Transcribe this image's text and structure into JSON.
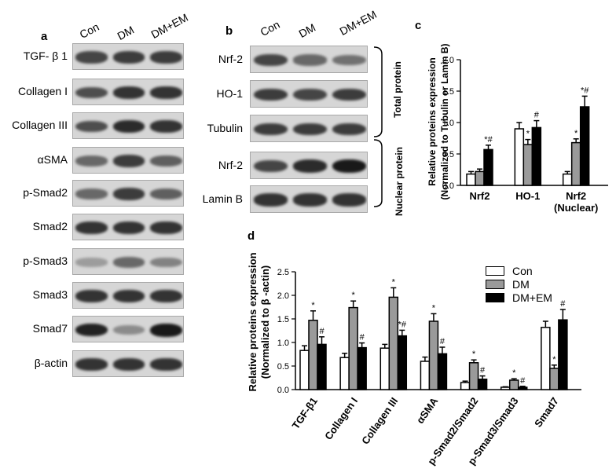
{
  "panels": {
    "a": "a",
    "b": "b",
    "c": "c",
    "d": "d"
  },
  "lanes": [
    "Con",
    "DM",
    "DM+EM"
  ],
  "panel_a": {
    "rows": [
      {
        "label": "TGF- β 1",
        "bands": [
          0.75,
          0.8,
          0.8
        ]
      },
      {
        "label": "Collagen I",
        "bands": [
          0.7,
          0.85,
          0.85
        ]
      },
      {
        "label": "Collagen III",
        "bands": [
          0.7,
          0.9,
          0.85
        ]
      },
      {
        "label": "αSMA",
        "bands": [
          0.55,
          0.8,
          0.6
        ]
      },
      {
        "label": "p-Smad2",
        "bands": [
          0.55,
          0.8,
          0.6
        ]
      },
      {
        "label": "Smad2",
        "bands": [
          0.85,
          0.85,
          0.85
        ]
      },
      {
        "label": "p-Smad3",
        "bands": [
          0.25,
          0.55,
          0.4
        ]
      },
      {
        "label": "Smad3",
        "bands": [
          0.85,
          0.85,
          0.85
        ]
      },
      {
        "label": "Smad7",
        "bands": [
          0.95,
          0.35,
          1.0
        ]
      },
      {
        "label": "β-actin",
        "bands": [
          0.85,
          0.85,
          0.85
        ]
      }
    ]
  },
  "panel_b": {
    "rows": [
      {
        "label": "Nrf-2",
        "bands": [
          0.75,
          0.55,
          0.5
        ]
      },
      {
        "label": "HO-1",
        "bands": [
          0.8,
          0.75,
          0.8
        ]
      },
      {
        "label": "Tubulin",
        "bands": [
          0.8,
          0.8,
          0.8
        ]
      },
      {
        "label": "Nrf-2",
        "bands": [
          0.75,
          0.9,
          1.0
        ]
      },
      {
        "label": "Lamin B",
        "bands": [
          0.85,
          0.85,
          0.85
        ]
      }
    ],
    "brackets": [
      "Total protein",
      "Nuclear protein"
    ]
  },
  "chart_data": [
    {
      "type": "bar",
      "title": "",
      "ylabel": "Relative proteins expression (Normalized to Tubulin or Lamin B)",
      "ylabel_lines": [
        "Relative proteins expression",
        "(Normalized to Tubulin or Lamin B)"
      ],
      "xlabel": "",
      "ylim": [
        0,
        2.0
      ],
      "yticks": [
        "0.0",
        "0.5",
        "1.0",
        "1.5",
        "2.0"
      ],
      "ytick_values": [
        0,
        0.5,
        1.0,
        1.5,
        2.0
      ],
      "categories": [
        "Nrf2",
        "HO-1",
        "Nrf2 (Nuclear)"
      ],
      "category_lines": [
        [
          "Nrf2"
        ],
        [
          "HO-1"
        ],
        [
          "Nrf2",
          "(Nuclear)"
        ]
      ],
      "series": [
        {
          "name": "Con",
          "values": [
            0.18,
            0.9,
            0.18
          ],
          "errors": [
            0.04,
            0.1,
            0.04
          ],
          "marks": [
            "",
            "",
            ""
          ]
        },
        {
          "name": "DM",
          "values": [
            0.22,
            0.65,
            0.68
          ],
          "errors": [
            0.04,
            0.08,
            0.06
          ],
          "marks": [
            "",
            "*",
            "*"
          ]
        },
        {
          "name": "DM+EM",
          "values": [
            0.57,
            0.92,
            1.25
          ],
          "errors": [
            0.07,
            0.11,
            0.17
          ],
          "marks": [
            "*#",
            "#",
            "*#"
          ]
        }
      ]
    },
    {
      "type": "bar",
      "title": "",
      "ylabel": "Relative proteins expression (Normalized to β -actin)",
      "ylabel_lines": [
        "Relative proteins expression",
        "(Normalized to β -actin)"
      ],
      "xlabel": "",
      "ylim": [
        0,
        2.5
      ],
      "yticks": [
        "0.0",
        "0.5",
        "1.0",
        "1.5",
        "2.0",
        "2.5"
      ],
      "ytick_values": [
        0,
        0.5,
        1.0,
        1.5,
        2.0,
        2.5
      ],
      "categories": [
        "TGF-β1",
        "Collagen I",
        "Collagen III",
        "αSMA",
        "p-Smad2/Smad2",
        "p-Smad3/Smad3",
        "Smad7"
      ],
      "series": [
        {
          "name": "Con",
          "values": [
            0.83,
            0.68,
            0.88,
            0.6,
            0.15,
            0.05,
            1.32
          ],
          "errors": [
            0.1,
            0.09,
            0.08,
            0.09,
            0.03,
            0.01,
            0.13
          ],
          "marks": [
            "",
            "",
            "",
            "",
            "",
            "",
            ""
          ]
        },
        {
          "name": "DM",
          "values": [
            1.47,
            1.74,
            1.96,
            1.45,
            0.57,
            0.2,
            0.45
          ],
          "errors": [
            0.2,
            0.14,
            0.2,
            0.16,
            0.06,
            0.03,
            0.07
          ],
          "marks": [
            "*",
            "*",
            "*",
            "*",
            "*",
            "*",
            "*"
          ]
        },
        {
          "name": "DM+EM",
          "values": [
            0.96,
            0.89,
            1.14,
            0.76,
            0.22,
            0.05,
            1.48
          ],
          "errors": [
            0.16,
            0.1,
            0.12,
            0.14,
            0.07,
            0.02,
            0.22
          ],
          "marks": [
            "#",
            "#",
            "*#",
            "#",
            "#",
            "#",
            "#"
          ]
        }
      ],
      "legend": [
        "Con",
        "DM",
        "DM+EM"
      ],
      "legend_position": "top-right"
    }
  ],
  "colors": {
    "con": "#ffffff",
    "dm": "#9a9a9a",
    "dmem": "#000000"
  }
}
